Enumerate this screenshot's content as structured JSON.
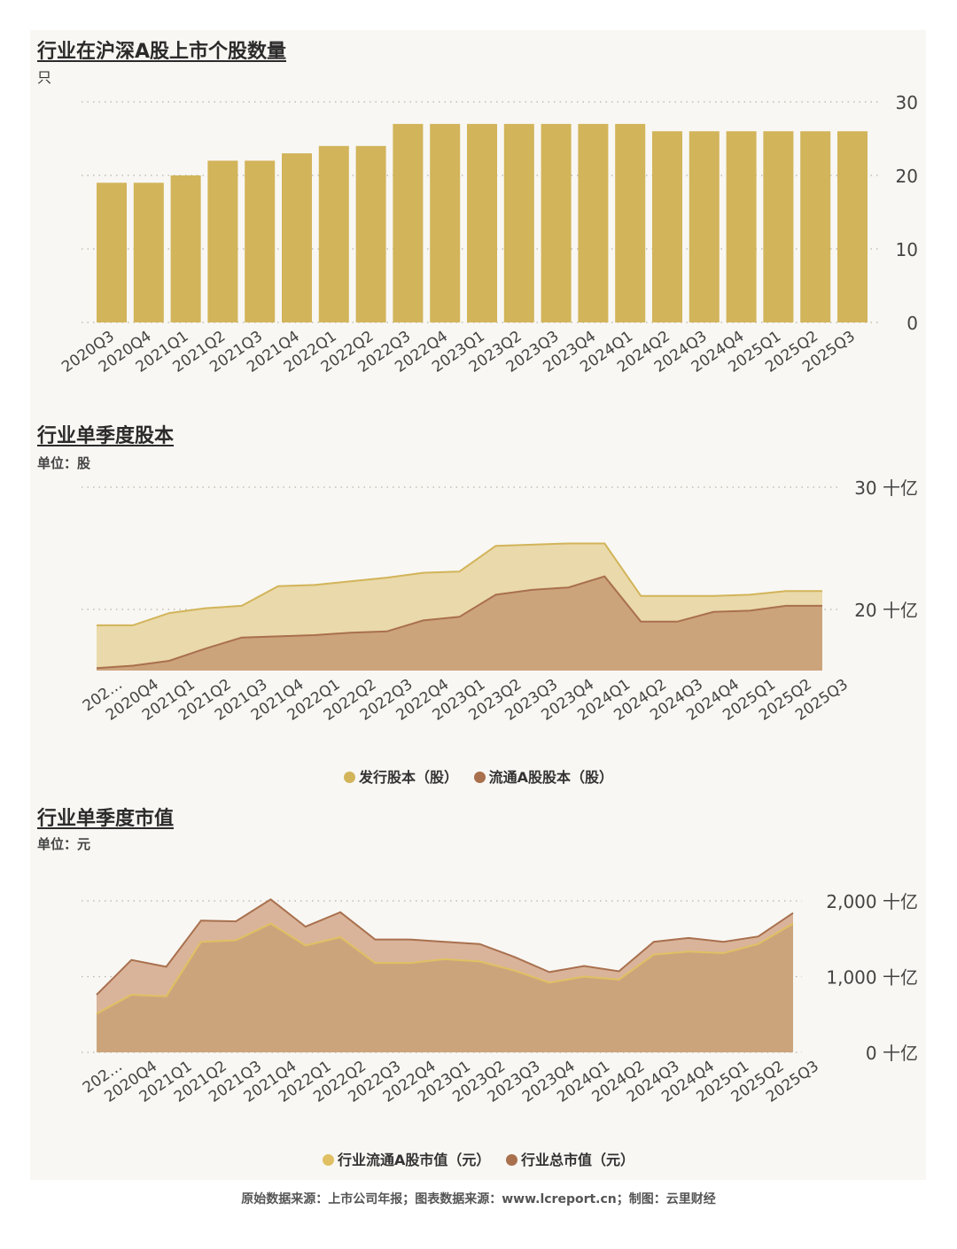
{
  "colors": {
    "bar": "#d2b45a",
    "issued_fill": "#ead9aa",
    "issued_line": "#d2b45a",
    "float_fill": "#cca47c",
    "float_line": "#a9704e",
    "total_fill": "#d9b49a",
    "total_line": "#a9704e",
    "mcap_float_line": "#e0c063",
    "grid": "#b8b3a6",
    "axis_text": "#444444"
  },
  "footer": "原始数据来源：上市公司年报；图表数据来源：www.lcreport.cn；制图：云里财经",
  "chart_data": [
    {
      "type": "bar",
      "title": "行业在沪深A股上市个股数量",
      "unit": "只",
      "categories": [
        "2020Q3",
        "2020Q4",
        "2021Q1",
        "2021Q2",
        "2021Q3",
        "2021Q4",
        "2022Q1",
        "2022Q2",
        "2022Q3",
        "2022Q4",
        "2023Q1",
        "2023Q2",
        "2023Q3",
        "2023Q4",
        "2024Q1",
        "2024Q2",
        "2024Q3",
        "2024Q4",
        "2025Q1",
        "2025Q2",
        "2025Q3"
      ],
      "values": [
        19,
        19,
        20,
        22,
        22,
        23,
        24,
        24,
        27,
        27,
        27,
        27,
        27,
        27,
        27,
        26,
        26,
        26,
        26,
        26,
        26
      ],
      "yticks": [
        "0",
        "10",
        "20",
        "30"
      ],
      "ylim": [
        0,
        30
      ],
      "grid": true
    },
    {
      "type": "area",
      "title": "行业单季度股本",
      "unit": "单位：股",
      "categories": [
        "2020Q3",
        "2020Q4",
        "2021Q1",
        "2021Q2",
        "2021Q3",
        "2021Q4",
        "2022Q1",
        "2022Q2",
        "2022Q3",
        "2022Q4",
        "2023Q1",
        "2023Q2",
        "2023Q3",
        "2023Q4",
        "2024Q1",
        "2024Q2",
        "2024Q3",
        "2024Q4",
        "2025Q1",
        "2025Q2",
        "2025Q3"
      ],
      "category_labels": [
        "202…",
        "2020Q4",
        "2021Q1",
        "2021Q2",
        "2021Q3",
        "2021Q4",
        "2022Q1",
        "2022Q2",
        "2022Q3",
        "2022Q4",
        "2023Q1",
        "2023Q2",
        "2023Q3",
        "2023Q4",
        "2024Q1",
        "2024Q2",
        "2024Q3",
        "2024Q4",
        "2025Q1",
        "2025Q2",
        "2025Q3"
      ],
      "series": [
        {
          "name": "发行股本（股）",
          "values": [
            18.7,
            18.7,
            19.7,
            20.1,
            20.3,
            21.9,
            22.0,
            22.3,
            22.6,
            23.0,
            23.1,
            25.2,
            25.3,
            25.4,
            25.4,
            21.1,
            21.1,
            21.1,
            21.2,
            21.5,
            21.5
          ]
        },
        {
          "name": "流通A股股本（股）",
          "values": [
            15.2,
            15.4,
            15.8,
            16.8,
            17.7,
            17.8,
            17.9,
            18.1,
            18.2,
            19.1,
            19.4,
            21.2,
            21.6,
            21.8,
            22.7,
            19.0,
            19.0,
            19.8,
            19.9,
            20.3,
            20.3
          ]
        }
      ],
      "yticks": [
        "20 十亿",
        "30 十亿"
      ],
      "ylim": [
        15,
        30
      ],
      "grid": true,
      "legend_position": "bottom"
    },
    {
      "type": "area",
      "title": "行业单季度市值",
      "unit": "单位：元",
      "categories": [
        "2020Q3",
        "2020Q4",
        "2021Q1",
        "2021Q2",
        "2021Q3",
        "2021Q4",
        "2022Q1",
        "2022Q2",
        "2022Q3",
        "2022Q4",
        "2023Q1",
        "2023Q2",
        "2023Q3",
        "2023Q4",
        "2024Q1",
        "2024Q2",
        "2024Q3",
        "2024Q4",
        "2025Q1",
        "2025Q2",
        "2025Q3"
      ],
      "category_labels": [
        "202…",
        "2020Q4",
        "2021Q1",
        "2021Q2",
        "2021Q3",
        "2021Q4",
        "2022Q1",
        "2022Q2",
        "2022Q3",
        "2022Q4",
        "2023Q1",
        "2023Q2",
        "2023Q3",
        "2023Q4",
        "2024Q1",
        "2024Q2",
        "2024Q3",
        "2024Q4",
        "2025Q1",
        "2025Q2",
        "2025Q3"
      ],
      "series": [
        {
          "name": "行业流通A股市值（元）",
          "values": [
            510,
            760,
            740,
            1460,
            1480,
            1700,
            1410,
            1520,
            1180,
            1180,
            1230,
            1200,
            1080,
            920,
            1000,
            960,
            1290,
            1330,
            1310,
            1430,
            1700
          ]
        },
        {
          "name": "行业总市值（元）",
          "values": [
            760,
            1220,
            1130,
            1740,
            1730,
            2020,
            1660,
            1850,
            1490,
            1490,
            1460,
            1430,
            1260,
            1060,
            1140,
            1070,
            1460,
            1510,
            1460,
            1530,
            1840
          ]
        }
      ],
      "yticks": [
        "0 十亿",
        "1,000 十亿",
        "2,000 十亿"
      ],
      "ylim": [
        0,
        2000
      ],
      "grid": true,
      "legend_position": "bottom"
    }
  ]
}
